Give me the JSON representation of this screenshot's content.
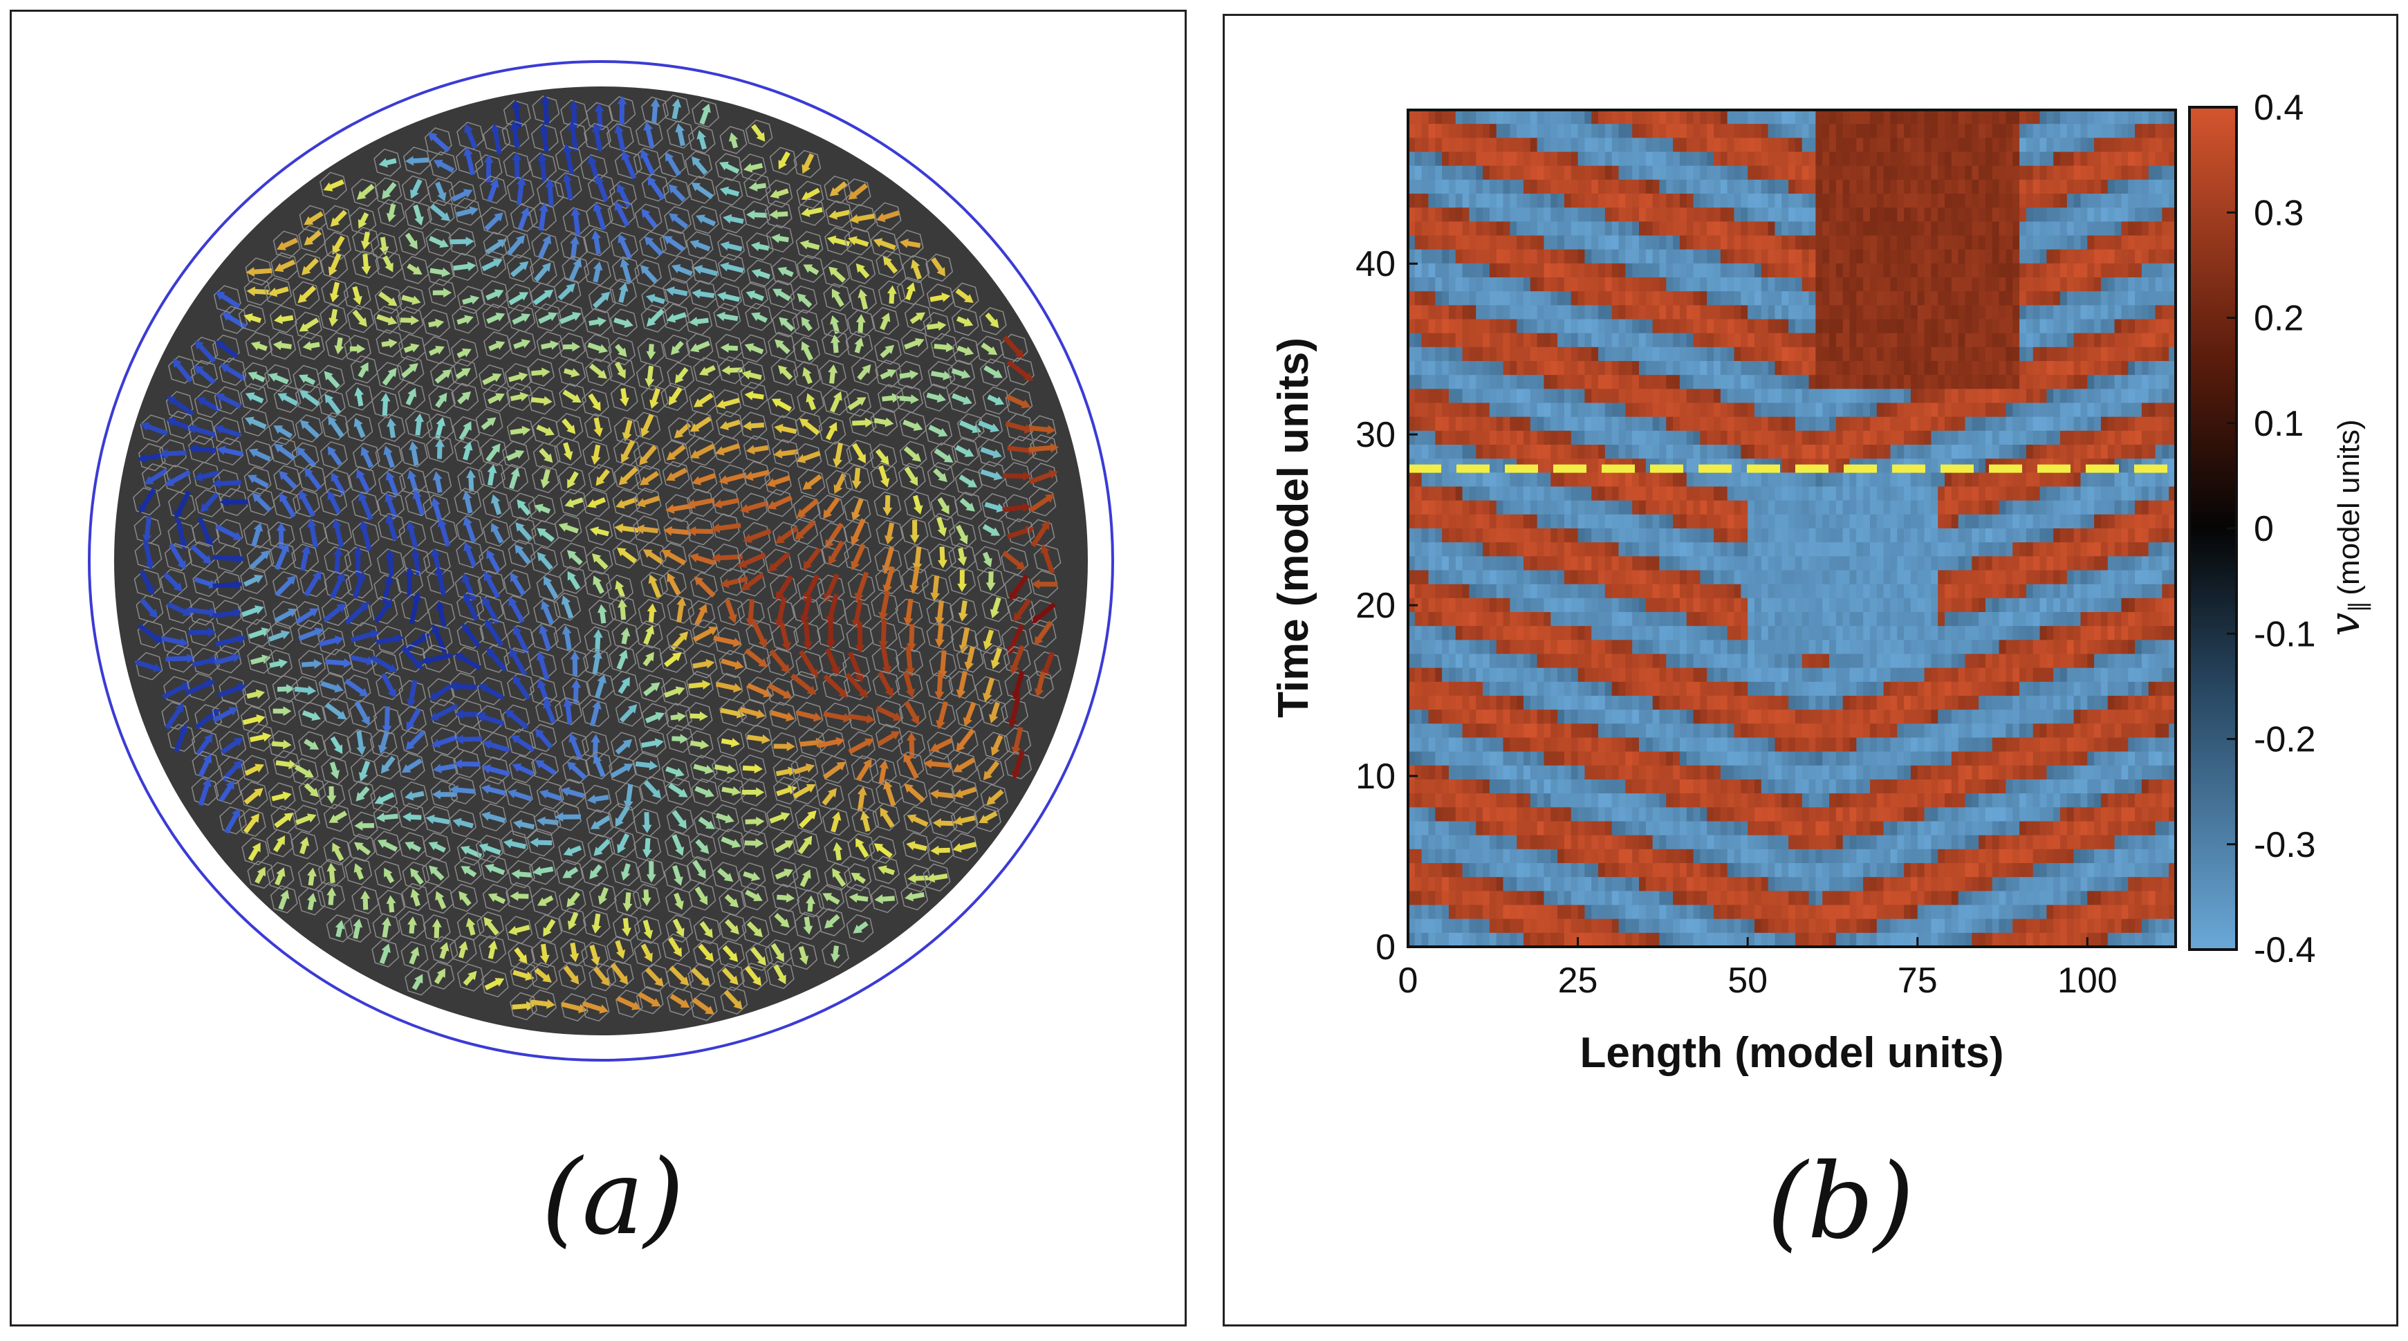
{
  "panels": {
    "a": {
      "label": "(a)"
    },
    "b": {
      "label": "(b)"
    }
  },
  "chart_data": [
    {
      "type": "other",
      "panel": "(a)",
      "description_marks": "velocity arrows on Voronoi cell tiling inside circular boundary",
      "colormap": [
        "#0a1a8c",
        "#3b5fd6",
        "#7fd2c8",
        "#e6e64a",
        "#d4762a",
        "#7a0d0d"
      ],
      "boundary_color": "#3b3bd6",
      "cell_color": "#3a3a3a"
    },
    {
      "type": "heatmap",
      "panel": "(b)",
      "title": "",
      "xlabel": "Length (model units)",
      "ylabel": "Time (model units)",
      "xlim": [
        0,
        113
      ],
      "ylim": [
        0,
        49
      ],
      "xticks": [
        "0",
        "25",
        "50",
        "75",
        "100"
      ],
      "yticks": [
        "0",
        "10",
        "20",
        "30",
        "40"
      ],
      "xtick_values": [
        0,
        25,
        50,
        75,
        100
      ],
      "ytick_values": [
        0,
        10,
        20,
        30,
        40
      ],
      "colorbar": {
        "label": "v_∥ (model units)",
        "label_symbol": "v",
        "label_subscript": "∥",
        "label_units": "(model units)",
        "range": [
          -0.4,
          0.4
        ],
        "ticks": [
          "0.4",
          "0.3",
          "0.2",
          "0.1",
          "0",
          "-0.1",
          "-0.2",
          "-0.3",
          "-0.4"
        ],
        "tick_values": [
          0.4,
          0.3,
          0.2,
          0.1,
          0,
          -0.1,
          -0.2,
          -0.3,
          -0.4
        ],
        "colors": [
          "#6aa8d8",
          "#2a4a66",
          "#050505",
          "#5a1c0c",
          "#d4552e"
        ]
      },
      "wave_apex_x": 60,
      "wave_period_time": 5.5,
      "dashed_line": {
        "time": 28,
        "color": "#f2ee45"
      }
    }
  ]
}
